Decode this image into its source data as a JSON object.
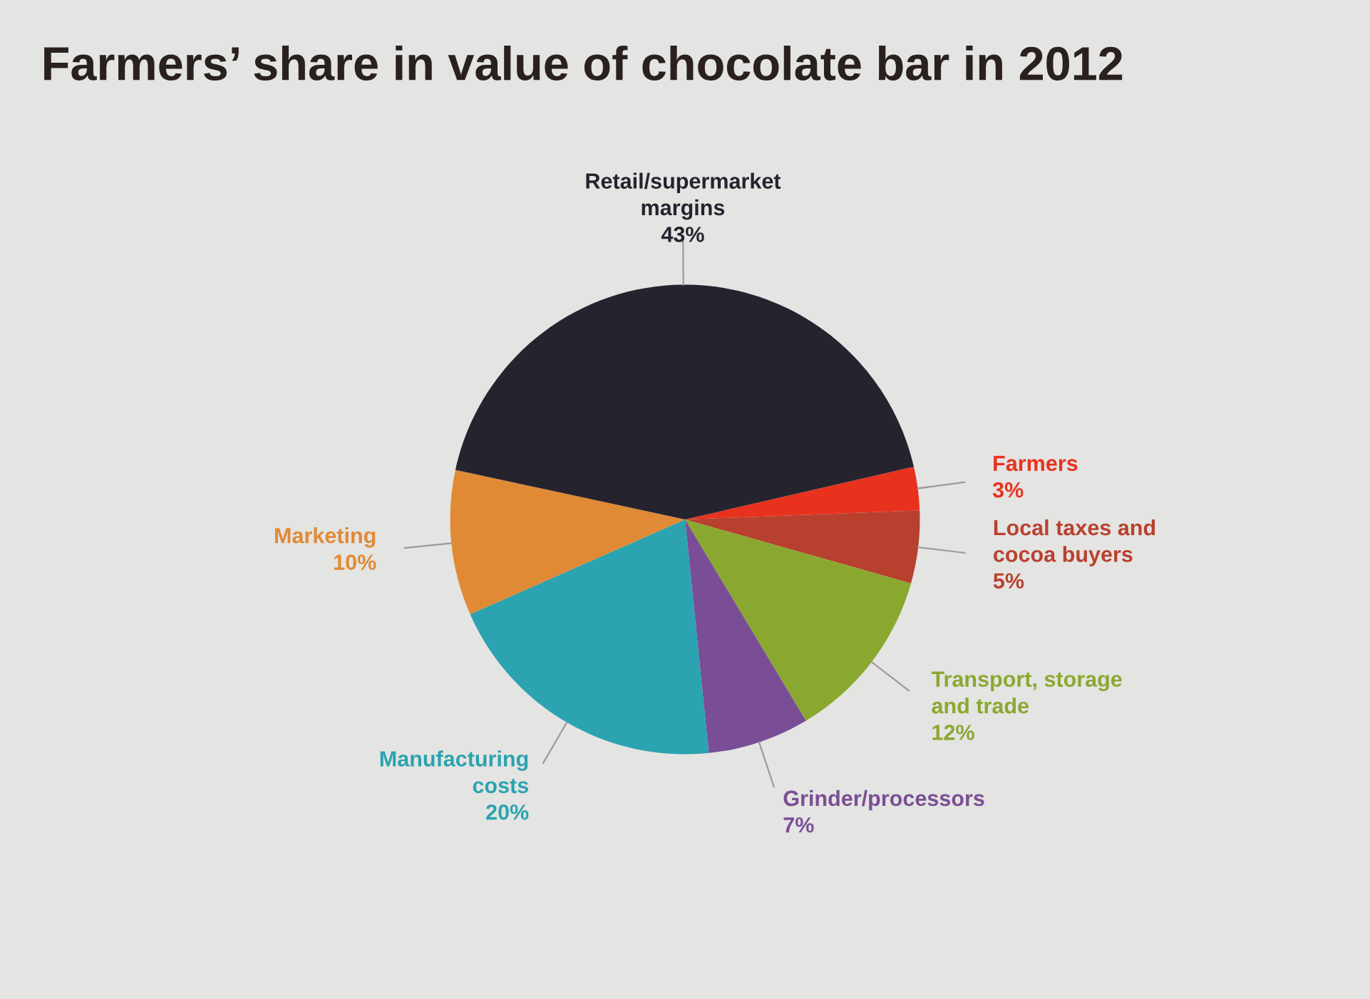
{
  "chart_data": {
    "type": "pie",
    "title": "Farmers’ share in value of chocolate bar in 2012",
    "categories": [
      "Farmers",
      "Local taxes and\ncocoa buyers",
      "Transport, storage\nand trade",
      "Grinder/processors",
      "Manufacturing\ncosts",
      "Marketing",
      "Retail/supermarket\nmargins"
    ],
    "values": [
      3,
      5,
      12,
      7,
      20,
      10,
      43
    ],
    "value_labels": [
      "3%",
      "5%",
      "12%",
      "7%",
      "20%",
      "10%",
      "43%"
    ],
    "colors": [
      "#e8321e",
      "#b8402e",
      "#8aa830",
      "#7a4e96",
      "#2ba3b0",
      "#e08a35",
      "#25232e"
    ]
  }
}
